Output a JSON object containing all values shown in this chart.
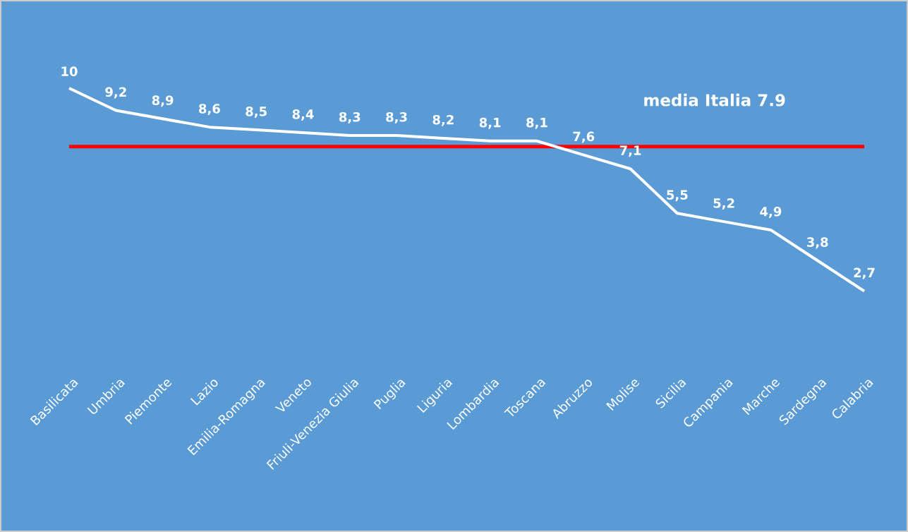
{
  "chart_data": {
    "type": "line",
    "categories": [
      "Basilicata",
      "Umbria",
      "Piemonte",
      "Lazio",
      "Emilia-Romagna",
      "Veneto",
      "Friuli-Venezia Giulia",
      "Puglia",
      "Liguria",
      "Lombardia",
      "Toscana",
      "Abruzzo",
      "Molise",
      "Sicilia",
      "Campania",
      "Marche",
      "Sardegna",
      "Calabria"
    ],
    "values": [
      10,
      9.2,
      8.9,
      8.6,
      8.5,
      8.4,
      8.3,
      8.3,
      8.2,
      8.1,
      8.1,
      7.6,
      7.1,
      5.5,
      5.2,
      4.9,
      3.8,
      2.7
    ],
    "value_labels": [
      "10",
      "9,2",
      "8,9",
      "8,6",
      "8,5",
      "8,4",
      "8,3",
      "8,3",
      "8,2",
      "8,1",
      "8,1",
      "7,6",
      "7,1",
      "5,5",
      "5,2",
      "4,9",
      "3,8",
      "2,7"
    ],
    "color": "#ffffff",
    "ref_lines": [
      {
        "axis": "y",
        "value": 7.9,
        "label": "media Italia 7.9",
        "color": "#ff0000"
      }
    ]
  }
}
